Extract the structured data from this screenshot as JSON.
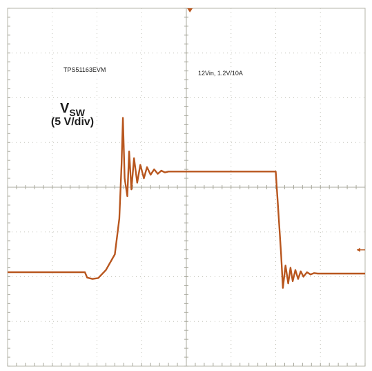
{
  "chart_data": {
    "type": "line",
    "title": "",
    "annotations": {
      "board": "TPS51163EVM",
      "conditions": "12Vin, 1.2V/10A",
      "signal_main": "V",
      "signal_sub": "SW",
      "scale": "(5 V/div)"
    },
    "grid": true,
    "divisions": {
      "x": 8,
      "y": 8
    },
    "xlim": [
      0,
      8
    ],
    "ylim": [
      0,
      8
    ],
    "trace_color": "#b8561e",
    "series": [
      {
        "name": "",
        "x": [
          0.0,
          1.0,
          1.73,
          1.78,
          1.9,
          2.03,
          2.2,
          2.4,
          2.5,
          2.55,
          2.58,
          2.62,
          2.68,
          2.72,
          2.77,
          2.83,
          2.9,
          2.97,
          3.05,
          3.12,
          3.2,
          3.28,
          3.36,
          3.44,
          3.52,
          3.6,
          3.7,
          3.8,
          3.9,
          4.0,
          4.5,
          5.0,
          5.5,
          6.0,
          6.05,
          6.12,
          6.16,
          6.22,
          6.28,
          6.33,
          6.38,
          6.44,
          6.5,
          6.56,
          6.62,
          6.7,
          6.78,
          6.86,
          6.94,
          7.05,
          7.2,
          7.5,
          8.0
        ],
        "y": [
          2.1,
          2.1,
          2.1,
          1.98,
          1.95,
          1.97,
          2.15,
          2.5,
          3.3,
          4.5,
          5.55,
          4.2,
          3.8,
          4.8,
          3.95,
          4.65,
          4.1,
          4.5,
          4.2,
          4.45,
          4.28,
          4.4,
          4.3,
          4.37,
          4.33,
          4.35,
          4.35,
          4.35,
          4.35,
          4.35,
          4.35,
          4.35,
          4.35,
          4.35,
          3.6,
          2.5,
          1.75,
          2.25,
          1.85,
          2.2,
          1.9,
          2.15,
          1.95,
          2.12,
          2.0,
          2.1,
          2.05,
          2.08,
          2.07,
          2.07,
          2.07,
          2.07,
          2.07
        ]
      }
    ]
  }
}
